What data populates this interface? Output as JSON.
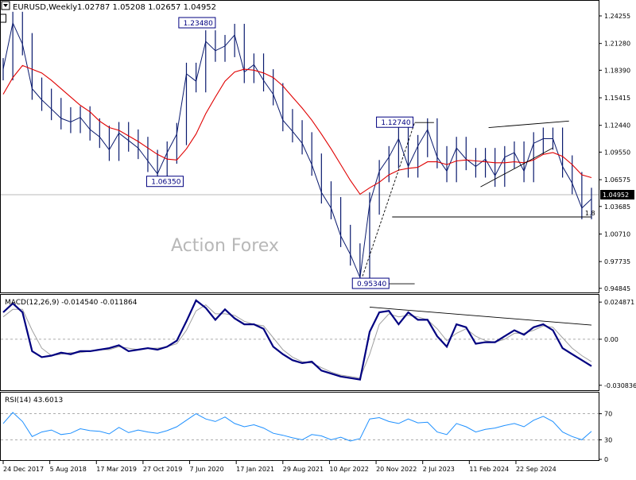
{
  "header": {
    "symbol": "EURUSD,Weekly",
    "ohlc": "1.02787 1.05208 1.02657 1.04952"
  },
  "watermark": "Action Forex",
  "colors": {
    "price": "#0a1a6e",
    "ma": "#e00000",
    "macd_main": "#000080",
    "macd_signal": "#a0a0a0",
    "rsi": "#1e90ff",
    "grid": "#c0c0c0",
    "line": "#000000"
  },
  "chart_data": [
    {
      "type": "line",
      "panel": "price",
      "ylim": [
        0.944,
        1.258
      ],
      "yticks": [
        "1.24255",
        "1.21280",
        "1.18390",
        "1.15415",
        "1.12440",
        "1.09550",
        "1.06575",
        "1.03685",
        "1.00710",
        "0.97735",
        "0.94845"
      ],
      "current_price": "1.04952",
      "level_label": "1.8",
      "annotations": [
        "1.23480",
        "1.06350",
        "1.12740",
        "0.95340"
      ],
      "xticks": [
        "24 Dec 2017",
        "5 Aug 2018",
        "17 Mar 2019",
        "27 Oct 2019",
        "7 Jun 2020",
        "17 Jan 2021",
        "29 Aug 2021",
        "10 Apr 2022",
        "20 Nov 2022",
        "2 Jul 2023",
        "11 Feb 2024",
        "22 Sep 2024"
      ],
      "series": [
        {
          "x": [
            0,
            6,
            12,
            18,
            24,
            30,
            36,
            42,
            48,
            54,
            60,
            66,
            72,
            78,
            84,
            90,
            96,
            102,
            108,
            114,
            120,
            126,
            132,
            138,
            144,
            150,
            156,
            162,
            168,
            174,
            180,
            186,
            192,
            198,
            204,
            210,
            216,
            222,
            228,
            234,
            240,
            246,
            252,
            258,
            264,
            270,
            276,
            282,
            288,
            294,
            300,
            306,
            312,
            318,
            324,
            330,
            336,
            342,
            348,
            354,
            360,
            366
          ],
          "values": [
            1.185,
            1.235,
            1.212,
            1.164,
            1.152,
            1.142,
            1.132,
            1.128,
            1.133,
            1.12,
            1.112,
            1.098,
            1.116,
            1.108,
            1.1,
            1.086,
            1.072,
            1.095,
            1.115,
            1.18,
            1.172,
            1.215,
            1.205,
            1.21,
            1.222,
            1.182,
            1.19,
            1.173,
            1.158,
            1.13,
            1.118,
            1.105,
            1.082,
            1.052,
            1.035,
            1.005,
            0.985,
            0.96,
            1.04,
            1.075,
            1.09,
            1.11,
            1.08,
            1.102,
            1.12,
            1.09,
            1.075,
            1.1,
            1.088,
            1.08,
            1.088,
            1.07,
            1.09,
            1.095,
            1.075,
            1.105,
            1.11,
            1.11,
            1.08,
            1.062,
            1.035,
            1.045
          ]
        },
        {
          "x": [
            0,
            6,
            12,
            18,
            24,
            30,
            36,
            42,
            48,
            54,
            60,
            66,
            72,
            78,
            84,
            90,
            96,
            102,
            108,
            114,
            120,
            126,
            132,
            138,
            144,
            150,
            156,
            162,
            168,
            174,
            180,
            186,
            192,
            198,
            204,
            210,
            216,
            222,
            228,
            234,
            240,
            246,
            252,
            258,
            264,
            270,
            276,
            282,
            288,
            294,
            300,
            306,
            312,
            318,
            324,
            330,
            336,
            342,
            348,
            354,
            360,
            366
          ],
          "values": [
            1.158,
            1.176,
            1.189,
            1.185,
            1.181,
            1.173,
            1.164,
            1.155,
            1.146,
            1.139,
            1.129,
            1.122,
            1.119,
            1.113,
            1.107,
            1.1,
            1.093,
            1.088,
            1.087,
            1.099,
            1.115,
            1.137,
            1.155,
            1.172,
            1.182,
            1.185,
            1.184,
            1.181,
            1.176,
            1.167,
            1.155,
            1.143,
            1.13,
            1.115,
            1.099,
            1.082,
            1.065,
            1.05,
            1.057,
            1.063,
            1.071,
            1.076,
            1.078,
            1.079,
            1.085,
            1.085,
            1.082,
            1.086,
            1.087,
            1.086,
            1.085,
            1.084,
            1.084,
            1.085,
            1.084,
            1.087,
            1.093,
            1.095,
            1.091,
            1.082,
            1.071,
            1.068
          ]
        }
      ]
    },
    {
      "type": "line",
      "panel": "macd",
      "title": "MACD(12,26,9) -0.014540 -0.011864",
      "ylim": [
        -0.0336,
        0.0292
      ],
      "yticks": [
        "0.024871",
        "0.00",
        "-0.030836"
      ],
      "series": [
        {
          "x": [
            0,
            6,
            12,
            18,
            24,
            30,
            36,
            42,
            48,
            54,
            60,
            66,
            72,
            78,
            84,
            90,
            96,
            102,
            108,
            114,
            120,
            126,
            132,
            138,
            144,
            150,
            156,
            162,
            168,
            174,
            180,
            186,
            192,
            198,
            204,
            210,
            216,
            222,
            228,
            234,
            240,
            246,
            252,
            258,
            264,
            270,
            276,
            282,
            288,
            294,
            300,
            306,
            312,
            318,
            324,
            330,
            336,
            342,
            348,
            354,
            360,
            366
          ],
          "values": [
            0.018,
            0.024,
            0.018,
            -0.008,
            -0.012,
            -0.011,
            -0.009,
            -0.01,
            -0.008,
            -0.008,
            -0.007,
            -0.006,
            -0.004,
            -0.008,
            -0.007,
            -0.006,
            -0.007,
            -0.005,
            -0.001,
            0.012,
            0.026,
            0.021,
            0.013,
            0.02,
            0.014,
            0.01,
            0.01,
            0.007,
            -0.005,
            -0.01,
            -0.014,
            -0.016,
            -0.015,
            -0.021,
            -0.023,
            -0.025,
            -0.026,
            -0.027,
            0.005,
            0.018,
            0.019,
            0.01,
            0.018,
            0.013,
            0.013,
            0.002,
            -0.005,
            0.01,
            0.008,
            -0.003,
            -0.002,
            -0.002,
            0.002,
            0.006,
            0.003,
            0.008,
            0.01,
            0.006,
            -0.006,
            -0.01,
            -0.014,
            -0.018
          ]
        },
        {
          "x": [
            0,
            6,
            12,
            18,
            24,
            30,
            36,
            42,
            48,
            54,
            60,
            66,
            72,
            78,
            84,
            90,
            96,
            102,
            108,
            114,
            120,
            126,
            132,
            138,
            144,
            150,
            156,
            162,
            168,
            174,
            180,
            186,
            192,
            198,
            204,
            210,
            216,
            222,
            228,
            234,
            240,
            246,
            252,
            258,
            264,
            270,
            276,
            282,
            288,
            294,
            300,
            306,
            312,
            318,
            324,
            330,
            336,
            342,
            348,
            354,
            360,
            366
          ],
          "values": [
            0.015,
            0.02,
            0.02,
            0.006,
            -0.006,
            -0.011,
            -0.01,
            -0.009,
            -0.009,
            -0.008,
            -0.007,
            -0.007,
            -0.005,
            -0.006,
            -0.007,
            -0.006,
            -0.006,
            -0.005,
            -0.003,
            0.006,
            0.019,
            0.023,
            0.017,
            0.017,
            0.016,
            0.012,
            0.01,
            0.009,
            0.001,
            -0.007,
            -0.012,
            -0.015,
            -0.016,
            -0.019,
            -0.022,
            -0.024,
            -0.025,
            -0.026,
            -0.01,
            0.01,
            0.017,
            0.015,
            0.016,
            0.015,
            0.013,
            0.007,
            -0.001,
            0.004,
            0.007,
            0.002,
            -0.001,
            -0.002,
            0.0,
            0.004,
            0.004,
            0.006,
            0.009,
            0.008,
            0.001,
            -0.006,
            -0.011,
            -0.015
          ]
        }
      ]
    },
    {
      "type": "line",
      "panel": "rsi",
      "title": "RSI(14) 43.6013",
      "ylim": [
        0,
        100
      ],
      "yticks": [
        "70",
        "30",
        "0"
      ],
      "series": [
        {
          "x": [
            0,
            6,
            12,
            18,
            24,
            30,
            36,
            42,
            48,
            54,
            60,
            66,
            72,
            78,
            84,
            90,
            96,
            102,
            108,
            114,
            120,
            126,
            132,
            138,
            144,
            150,
            156,
            162,
            168,
            174,
            180,
            186,
            192,
            198,
            204,
            210,
            216,
            222,
            228,
            234,
            240,
            246,
            252,
            258,
            264,
            270,
            276,
            282,
            288,
            294,
            300,
            306,
            312,
            318,
            324,
            330,
            336,
            342,
            348,
            354,
            360,
            366
          ],
          "values": [
            55,
            72,
            58,
            35,
            42,
            45,
            38,
            40,
            47,
            44,
            43,
            39,
            49,
            41,
            45,
            42,
            40,
            44,
            50,
            60,
            70,
            62,
            58,
            65,
            55,
            50,
            53,
            48,
            40,
            37,
            33,
            30,
            38,
            36,
            30,
            34,
            28,
            32,
            62,
            64,
            58,
            55,
            62,
            56,
            57,
            42,
            38,
            55,
            50,
            42,
            46,
            48,
            52,
            55,
            50,
            60,
            66,
            58,
            42,
            35,
            30,
            43
          ]
        }
      ]
    }
  ]
}
